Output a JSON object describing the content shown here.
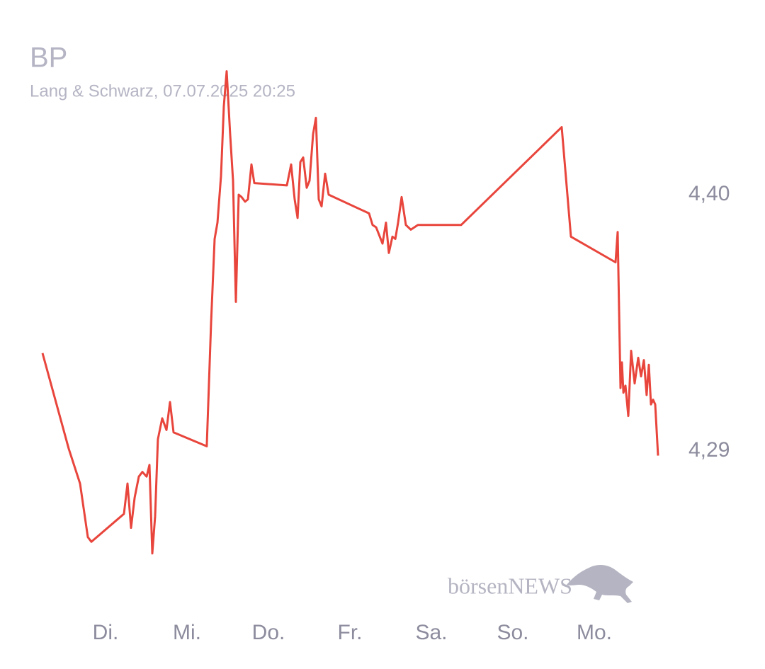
{
  "chart_data": {
    "type": "line",
    "title": "BP",
    "subtitle": "Lang & Schwarz, 07.07.2025 20:25",
    "watermark": "börsenNEWS",
    "color": "#e8453c",
    "grid": false,
    "x": [
      0.226,
      0.548,
      0.687,
      0.783,
      0.826,
      1.226,
      1.27,
      1.313,
      1.357,
      1.409,
      1.452,
      1.504,
      1.539,
      1.574,
      1.609,
      1.643,
      1.696,
      1.748,
      1.791,
      1.835,
      2.243,
      2.296,
      2.339,
      2.374,
      2.417,
      2.452,
      2.487,
      2.53,
      2.565,
      2.6,
      2.635,
      2.67,
      2.713,
      2.748,
      2.791,
      2.826,
      3.226,
      3.278,
      3.322,
      3.357,
      3.391,
      3.426,
      3.47,
      3.504,
      3.548,
      3.583,
      3.617,
      3.652,
      3.696,
      3.739,
      4.235,
      4.278,
      4.322,
      4.4,
      4.443,
      4.478,
      4.522,
      4.557,
      4.591,
      4.635,
      4.687,
      4.748,
      4.835,
      5.365,
      6.6,
      6.713,
      7.261,
      7.287,
      7.322,
      7.339,
      7.357,
      7.383,
      7.417,
      7.452,
      7.496,
      7.539,
      7.574,
      7.609,
      7.643,
      7.67,
      7.696,
      7.722,
      7.748,
      7.783
    ],
    "values": [
      4.332,
      4.291,
      4.276,
      4.253,
      4.251,
      4.263,
      4.276,
      4.257,
      4.27,
      4.279,
      4.281,
      4.279,
      4.284,
      4.246,
      4.262,
      4.295,
      4.304,
      4.299,
      4.311,
      4.298,
      4.292,
      4.345,
      4.381,
      4.388,
      4.408,
      4.438,
      4.453,
      4.426,
      4.406,
      4.354,
      4.4,
      4.399,
      4.397,
      4.398,
      4.413,
      4.405,
      4.404,
      4.413,
      4.398,
      4.39,
      4.414,
      4.416,
      4.403,
      4.406,
      4.426,
      4.433,
      4.398,
      4.395,
      4.409,
      4.4,
      4.392,
      4.387,
      4.386,
      4.379,
      4.388,
      4.375,
      4.382,
      4.381,
      4.388,
      4.399,
      4.387,
      4.385,
      4.387,
      4.387,
      4.429,
      4.382,
      4.371,
      4.384,
      4.317,
      4.328,
      4.315,
      4.318,
      4.305,
      4.333,
      4.319,
      4.33,
      4.322,
      4.329,
      4.314,
      4.327,
      4.31,
      4.312,
      4.31,
      4.288
    ],
    "xlim": [
      0,
      8.05
    ],
    "xticks": [
      {
        "value": 1,
        "label": "Di."
      },
      {
        "value": 2,
        "label": "Mi."
      },
      {
        "value": 3,
        "label": "Do."
      },
      {
        "value": 4,
        "label": "Fr."
      },
      {
        "value": 5,
        "label": "Sa."
      },
      {
        "value": 6,
        "label": "So."
      },
      {
        "value": 7,
        "label": "Mo."
      }
    ],
    "ylim": [
      4.24,
      4.46
    ],
    "yticks": [
      {
        "value": 4.4,
        "label": "4,40"
      },
      {
        "value": 4.29,
        "label": "4,29"
      }
    ]
  }
}
